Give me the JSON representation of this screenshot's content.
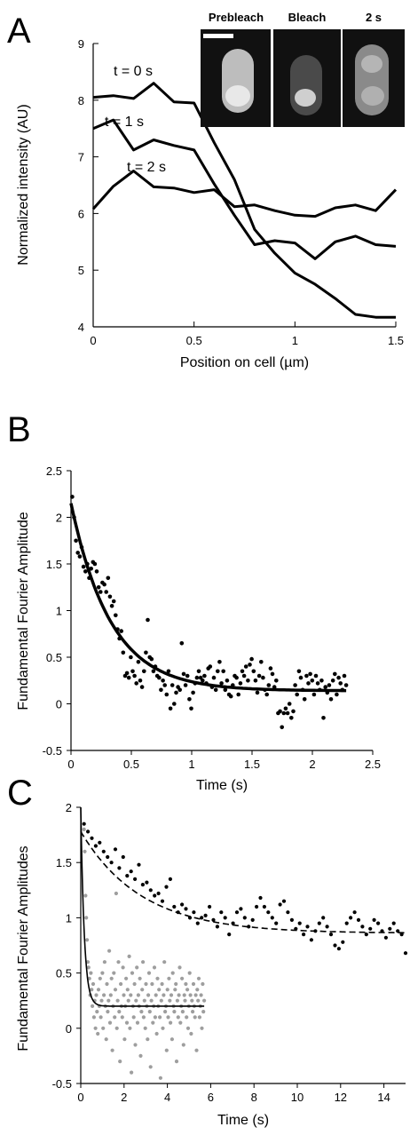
{
  "chart_data": [
    {
      "panel": "A",
      "type": "line",
      "xlabel": "Position on cell (µm)",
      "ylabel": "Normalized intensity (AU)",
      "xlim": [
        0,
        1.5
      ],
      "ylim": [
        4,
        9
      ],
      "xticks": [
        "0",
        "0.5",
        "1",
        "1.5"
      ],
      "yticks": [
        "4",
        "5",
        "6",
        "7",
        "8",
        "9"
      ],
      "series": [
        {
          "name": "t = 0 s",
          "x": [
            0,
            0.1,
            0.2,
            0.3,
            0.4,
            0.5,
            0.6,
            0.7,
            0.8,
            0.9,
            1.0,
            1.1,
            1.2,
            1.3,
            1.4,
            1.5
          ],
          "y": [
            8.05,
            8.08,
            8.03,
            8.3,
            7.97,
            7.95,
            7.25,
            6.6,
            5.72,
            5.3,
            4.95,
            4.75,
            4.5,
            4.22,
            4.17,
            4.17
          ]
        },
        {
          "name": "t = 1 s",
          "x": [
            0,
            0.1,
            0.2,
            0.3,
            0.4,
            0.5,
            0.6,
            0.7,
            0.8,
            0.9,
            1.0,
            1.1,
            1.2,
            1.3,
            1.4,
            1.5
          ],
          "y": [
            7.5,
            7.65,
            7.12,
            7.3,
            7.2,
            7.12,
            6.52,
            5.97,
            5.45,
            5.52,
            5.48,
            5.2,
            5.5,
            5.6,
            5.45,
            5.42
          ]
        },
        {
          "name": "t = 2 s",
          "x": [
            0,
            0.1,
            0.2,
            0.3,
            0.4,
            0.5,
            0.6,
            0.7,
            0.8,
            0.9,
            1.0,
            1.1,
            1.2,
            1.3,
            1.4,
            1.5
          ],
          "y": [
            6.08,
            6.48,
            6.75,
            6.47,
            6.45,
            6.37,
            6.42,
            6.12,
            6.15,
            6.05,
            5.97,
            5.95,
            6.1,
            6.15,
            6.05,
            6.42
          ]
        }
      ],
      "inset_labels": [
        "Prebleach",
        "Bleach",
        "2 s"
      ]
    },
    {
      "panel": "B",
      "type": "scatter",
      "xlabel": "Time (s)",
      "ylabel": "Fundamental Fourier Amplitude",
      "xlim": [
        0,
        2.5
      ],
      "ylim": [
        -0.5,
        2.5
      ],
      "xticks": [
        "0",
        "0.5",
        "1",
        "1.5",
        "2",
        "2.5"
      ],
      "yticks": [
        "-0.5",
        "0",
        "0.5",
        "1",
        "1.5",
        "2",
        "2.5"
      ],
      "fit": {
        "form": "exponential",
        "y0": 2.15,
        "yinf": 0.14,
        "tau": 0.33,
        "x_end": 2.28
      },
      "points_y": [
        2.22,
        2.0,
        1.75,
        1.62,
        1.58,
        1.68,
        1.47,
        1.42,
        1.5,
        1.35,
        1.45,
        1.52,
        1.5,
        1.42,
        1.25,
        1.2,
        1.3,
        1.28,
        1.2,
        1.35,
        1.15,
        1.05,
        1.1,
        0.95,
        0.8,
        0.7,
        0.78,
        0.55,
        0.3,
        0.33,
        0.28,
        0.5,
        0.35,
        0.3,
        0.22,
        0.45,
        0.25,
        0.18,
        0.35,
        0.55,
        0.9,
        0.5,
        0.48,
        0.35,
        0.4,
        0.3,
        0.28,
        0.15,
        0.25,
        0.2,
        0.1,
        0.35,
        -0.05,
        0.2,
        0.0,
        0.12,
        0.18,
        0.15,
        0.65,
        0.32,
        0.2,
        0.3,
        0.05,
        -0.05,
        0.12,
        0.22,
        0.28,
        0.35,
        0.28,
        0.25,
        0.3,
        0.22,
        0.38,
        0.4,
        0.18,
        0.28,
        0.15,
        0.35,
        0.45,
        0.22,
        0.35,
        0.15,
        0.25,
        0.1,
        0.08,
        0.2,
        0.3,
        0.28,
        0.1,
        0.22,
        0.35,
        0.3,
        0.4,
        0.25,
        0.42,
        0.48,
        0.35,
        0.25,
        0.12,
        0.3,
        0.45,
        0.28,
        0.15,
        0.1,
        0.2,
        0.38,
        0.32,
        0.18,
        0.25,
        -0.1,
        -0.08,
        -0.25,
        -0.1,
        -0.05,
        -0.1,
        0.0,
        -0.15,
        -0.08,
        0.2,
        0.1,
        0.35,
        0.28,
        0.15,
        0.05,
        0.3,
        0.22,
        0.32,
        0.25,
        0.1,
        0.3,
        0.22,
        0.15,
        0.25,
        -0.15,
        0.18,
        0.12,
        0.2,
        0.05,
        0.25,
        0.32,
        0.1,
        0.28,
        0.22,
        0.15,
        0.3,
        0.2
      ]
    },
    {
      "panel": "C",
      "type": "scatter",
      "xlabel": "Time (s)",
      "ylabel": "Fundamental Fourier Amplitudes",
      "xlim": [
        0,
        15
      ],
      "ylim": [
        -0.5,
        2
      ],
      "xticks": [
        "0",
        "2",
        "4",
        "6",
        "8",
        "10",
        "12",
        "14"
      ],
      "yticks": [
        "-0.5",
        "0",
        "0.5",
        "1",
        "1.5",
        "2"
      ],
      "series": [
        {
          "color": "#000000",
          "fit": {
            "form": "exponential",
            "style": "dashed",
            "y0": 1.78,
            "yinf": 0.86,
            "tau": 2.8,
            "x_end": 15
          },
          "points_y": [
            1.85,
            1.78,
            1.72,
            1.65,
            1.68,
            1.6,
            1.55,
            1.5,
            1.62,
            1.45,
            1.55,
            1.38,
            1.42,
            1.35,
            1.48,
            1.3,
            1.32,
            1.25,
            1.2,
            1.22,
            1.15,
            1.28,
            1.35,
            1.1,
            1.05,
            1.12,
            1.08,
            1.0,
            1.05,
            0.95,
            1.0,
            1.02,
            1.1,
            0.98,
            0.92,
            1.05,
            1.0,
            0.85,
            0.95,
            1.05,
            1.08,
            1.0,
            0.92,
            0.98,
            1.1,
            1.18,
            1.1,
            1.05,
            1.0,
            0.95,
            1.12,
            1.15,
            1.05,
            0.98,
            0.9,
            0.95,
            0.85,
            0.92,
            0.8,
            0.88,
            0.95,
            1.0,
            0.92,
            0.85,
            0.75,
            0.72,
            0.78,
            0.95,
            1.0,
            1.05,
            0.98,
            0.92,
            0.85,
            0.9,
            0.98,
            0.95,
            0.88,
            0.82,
            0.9,
            0.95,
            0.88,
            0.85,
            0.68
          ]
        },
        {
          "color": "#9e9e9e",
          "fit": {
            "form": "exponential",
            "style": "solid",
            "y0": 2.0,
            "yinf": 0.2,
            "tau": 0.16,
            "x_end": 5.7
          },
          "points_y": [
            1.8,
            1.6,
            1.2,
            1.0,
            0.8,
            0.6,
            0.55,
            0.45,
            0.3,
            0.5,
            0.35,
            0.2,
            0.4,
            0.1,
            0.25,
            0.0,
            0.3,
            0.15,
            -0.05,
            0.35,
            0.2,
            0.45,
            0.1,
            0.25,
            0.5,
            0.0,
            0.3,
            0.6,
            0.2,
            -0.1,
            0.4,
            0.15,
            0.25,
            0.7,
            0.05,
            0.3,
            0.45,
            -0.2,
            0.2,
            0.5,
            0.1,
            0.35,
            1.22,
            0.0,
            0.25,
            0.6,
            0.15,
            -0.3,
            0.4,
            0.2,
            0.1,
            0.55,
            0.3,
            -0.1,
            0.2,
            0.45,
            0.05,
            0.35,
            0.25,
            0.65,
            0.0,
            0.3,
            -0.4,
            0.5,
            0.2,
            0.1,
            0.4,
            -0.15,
            0.25,
            0.55,
            0.05,
            0.3,
            0.2,
            0.45,
            -0.25,
            0.15,
            0.35,
            0.6,
            0.1,
            0.25,
            0.0,
            0.4,
            0.2,
            -0.1,
            0.3,
            0.5,
            0.15,
            -0.35,
            0.25,
            0.4,
            0.05,
            0.2,
            0.55,
            0.1,
            0.3,
            -0.05,
            0.45,
            0.2,
            0.35,
            0.1,
            -0.45,
            0.25,
            0.4,
            0.0,
            0.3,
            0.6,
            0.15,
            0.2,
            -0.2,
            0.35,
            0.1,
            0.45,
            0.25,
            0.05,
            0.3,
            -0.1,
            0.5,
            0.2,
            0.15,
            0.35,
            0.4,
            -0.3,
            0.25,
            0.1,
            0.3,
            0.55,
            0.05,
            0.2,
            0.45,
            0.15,
            -0.15,
            0.3,
            0.25,
            0.4,
            0.1,
            0.35,
            0.0,
            0.2,
            0.5,
            0.3,
            -0.05,
            0.25,
            0.15,
            0.4,
            0.2,
            0.1,
            0.3,
            -0.2,
            0.35,
            0.25,
            0.45,
            0.1,
            0.2,
            0.3,
            0.0,
            0.4,
            0.15,
            0.25
          ]
        }
      ]
    }
  ]
}
